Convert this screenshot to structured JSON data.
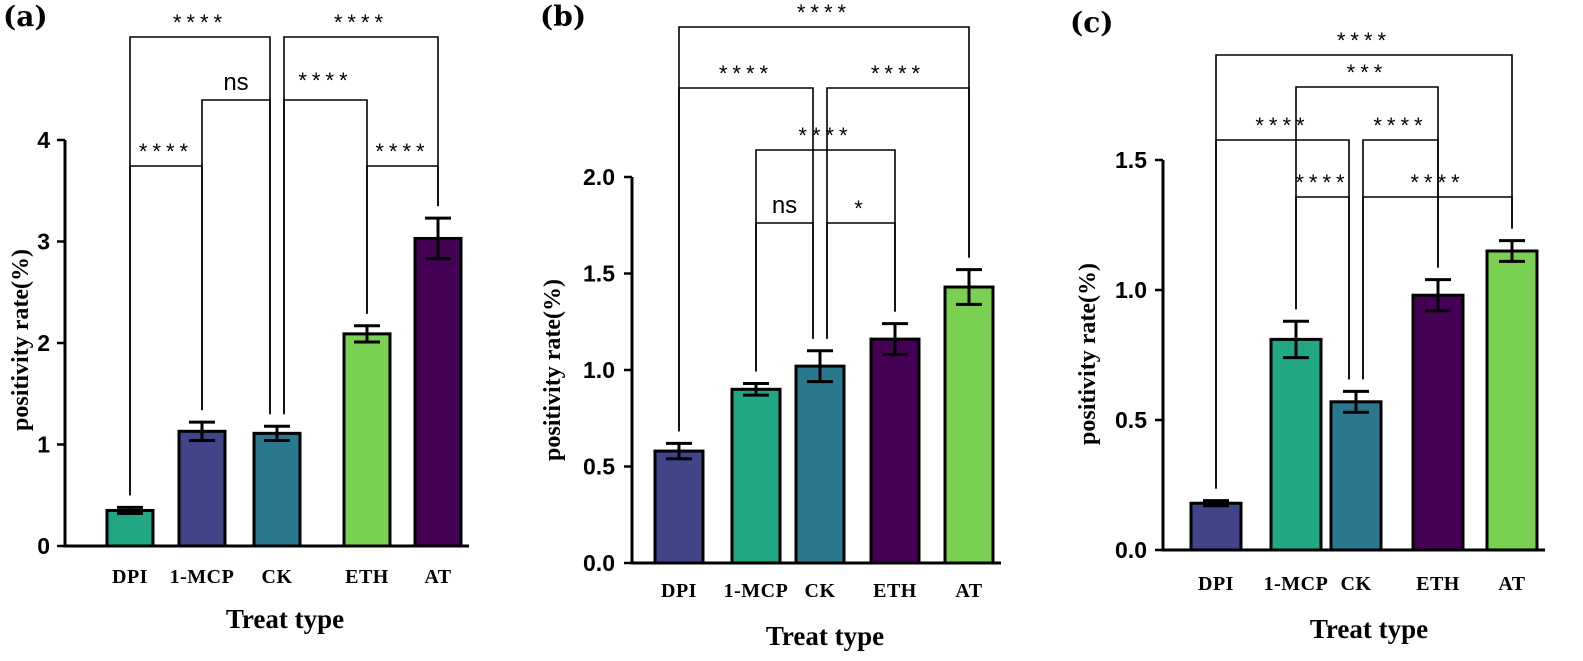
{
  "chart_data": [
    {
      "type": "bar",
      "panel_label": "(a)",
      "categories": [
        "DPI",
        "1-MCP",
        "CK",
        "ETH",
        "AT"
      ],
      "values": [
        0.35,
        1.13,
        1.11,
        2.09,
        3.03
      ],
      "errors": [
        0.03,
        0.09,
        0.07,
        0.08,
        0.2
      ],
      "colors": [
        "#22a784",
        "#414487",
        "#2a788e",
        "#7ad151",
        "#440154"
      ],
      "xlabel": "Treat type",
      "ylabel": "positivity rate(%)",
      "ylim": [
        0,
        4
      ],
      "yticks": [
        "0",
        "1",
        "2",
        "3",
        "4"
      ],
      "yticks_values": [
        0,
        1,
        2,
        3,
        4
      ],
      "comparisons": [
        {
          "from": 0,
          "to": 2,
          "label": "****"
        },
        {
          "from": 2,
          "to": 4,
          "label": "****"
        },
        {
          "from": 1,
          "to": 2,
          "label": "ns"
        },
        {
          "from": 2,
          "to": 3,
          "label": "****"
        },
        {
          "from": 0,
          "to": 1,
          "label": "****"
        },
        {
          "from": 3,
          "to": 4,
          "label": "****"
        }
      ]
    },
    {
      "type": "bar",
      "panel_label": "(b)",
      "categories": [
        "DPI",
        "1-MCP",
        "CK",
        "ETH",
        "AT"
      ],
      "values": [
        0.58,
        0.9,
        1.02,
        1.16,
        1.43
      ],
      "errors": [
        0.04,
        0.03,
        0.08,
        0.08,
        0.09
      ],
      "colors": [
        "#414487",
        "#22a784",
        "#2a788e",
        "#440154",
        "#7ad151"
      ],
      "xlabel": "Treat type",
      "ylabel": "positivity rate(%)",
      "ylim": [
        0,
        2.0
      ],
      "yticks": [
        "0.0",
        "0.5",
        "1.0",
        "1.5",
        "2.0"
      ],
      "yticks_values": [
        0,
        0.5,
        1.0,
        1.5,
        2.0
      ],
      "comparisons": [
        {
          "from": 0,
          "to": 4,
          "label": "****"
        },
        {
          "from": 0,
          "to": 2,
          "label": "****"
        },
        {
          "from": 2,
          "to": 4,
          "label": "****"
        },
        {
          "from": 1,
          "to": 3,
          "label": "****"
        },
        {
          "from": 1,
          "to": 2,
          "label": "ns"
        },
        {
          "from": 2,
          "to": 3,
          "label": "*"
        }
      ]
    },
    {
      "type": "bar",
      "panel_label": "(c)",
      "categories": [
        "DPI",
        "1-MCP",
        "CK",
        "ETH",
        "AT"
      ],
      "values": [
        0.18,
        0.81,
        0.57,
        0.98,
        1.15
      ],
      "errors": [
        0.01,
        0.07,
        0.04,
        0.06,
        0.04
      ],
      "colors": [
        "#414487",
        "#22a784",
        "#2a788e",
        "#440154",
        "#7ad151"
      ],
      "xlabel": "Treat type",
      "ylabel": "positivity rate(%)",
      "ylim": [
        0,
        1.5
      ],
      "yticks": [
        "0.0",
        "0.5",
        "1.0",
        "1.5"
      ],
      "yticks_values": [
        0,
        0.5,
        1.0,
        1.5
      ],
      "comparisons": [
        {
          "from": 0,
          "to": 4,
          "label": "****"
        },
        {
          "from": 1,
          "to": 3,
          "label": "***"
        },
        {
          "from": 0,
          "to": 2,
          "label": "****"
        },
        {
          "from": 2,
          "to": 3,
          "label": "****"
        },
        {
          "from": 1,
          "to": 2,
          "label": "****"
        },
        {
          "from": 2,
          "to": 4,
          "label": "****"
        }
      ]
    }
  ]
}
